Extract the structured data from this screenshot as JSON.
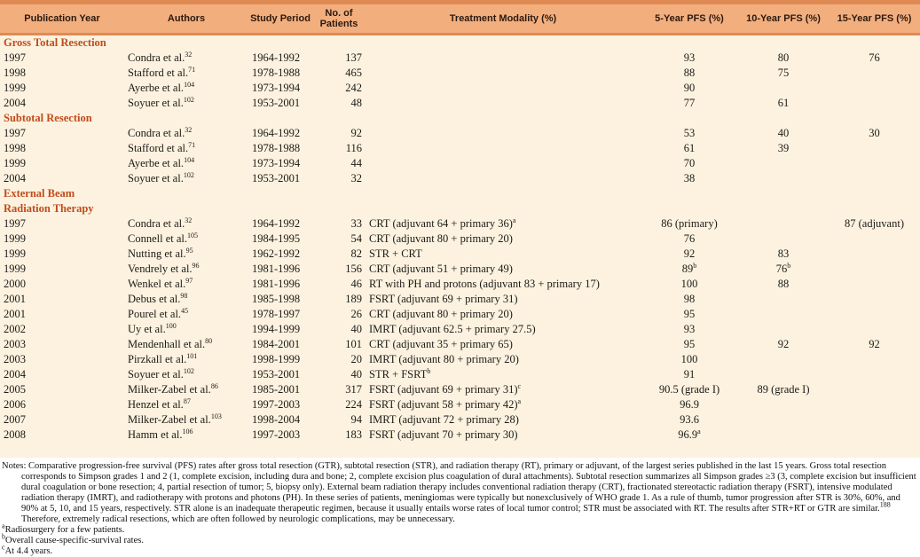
{
  "colors": {
    "header_fill": "#F3AE7E",
    "header_border": "#DF8A52",
    "body_fill": "#FCF2DF",
    "section_title_text": "#C14B1C",
    "body_text": "#1C1A18",
    "page_background": "#FFFFFF"
  },
  "table": {
    "columns": [
      {
        "id": "publication-year",
        "lines": [
          "Publication Year"
        ]
      },
      {
        "id": "authors",
        "lines": [
          "Authors"
        ]
      },
      {
        "id": "study-period",
        "lines": [
          "Study Period"
        ]
      },
      {
        "id": "no-of-patients",
        "lines": [
          "No. of",
          "Patients"
        ]
      },
      {
        "id": "treatment-modality",
        "lines": [
          "Treatment Modality (%)"
        ]
      },
      {
        "id": "pfs-5-year",
        "lines": [
          "5-Year PFS (%)"
        ]
      },
      {
        "id": "pfs-10-year",
        "lines": [
          "10-Year PFS (%)"
        ]
      },
      {
        "id": "pfs-15-year",
        "lines": [
          "15-Year PFS (%)"
        ]
      }
    ],
    "sections": [
      {
        "title_lines": [
          "Gross Total Resection"
        ],
        "rows": [
          [
            "1997",
            "Condra et al.^{32}",
            "1964-1992",
            "137",
            "",
            "93",
            "80",
            "76"
          ],
          [
            "1998",
            "Stafford et al.^{71}",
            "1978-1988",
            "465",
            "",
            "88",
            "75",
            ""
          ],
          [
            "1999",
            "Ayerbe et al.^{104}",
            "1973-1994",
            "242",
            "",
            "90",
            "",
            ""
          ],
          [
            "2004",
            "Soyuer et al.^{102}",
            "1953-2001",
            "48",
            "",
            "77",
            "61",
            ""
          ]
        ]
      },
      {
        "title_lines": [
          "Subtotal Resection"
        ],
        "rows": [
          [
            "1997",
            "Condra et al.^{32}",
            "1964-1992",
            "92",
            "",
            "53",
            "40",
            "30"
          ],
          [
            "1998",
            "Stafford et al.^{71}",
            "1978-1988",
            "116",
            "",
            "61",
            "39",
            ""
          ],
          [
            "1999",
            "Ayerbe et al.^{104}",
            "1973-1994",
            "44",
            "",
            "70",
            "",
            ""
          ],
          [
            "2004",
            "Soyuer et al.^{102}",
            "1953-2001",
            "32",
            "",
            "38",
            "",
            ""
          ]
        ]
      },
      {
        "title_lines": [
          "External Beam",
          "Radiation Therapy"
        ],
        "rows": [
          [
            "1997",
            "Condra et al.^{32}",
            "1964-1992",
            "33",
            "CRT (adjuvant 64 + primary 36)^{a}",
            "86 (primary)",
            "",
            "87 (adjuvant)"
          ],
          [
            "1999",
            "Connell et al.^{105}",
            "1984-1995",
            "54",
            "CRT (adjuvant 80 + primary 20)",
            "76",
            "",
            ""
          ],
          [
            "1999",
            "Nutting et al.^{95}",
            "1962-1992",
            "82",
            "STR + CRT",
            "92",
            "83",
            ""
          ],
          [
            "1999",
            "Vendrely et al.^{96}",
            "1981-1996",
            "156",
            "CRT (adjuvant 51 + primary 49)",
            "89^{b}",
            "76^{b}",
            ""
          ],
          [
            "2000",
            "Wenkel et al.^{97}",
            "1981-1996",
            "46",
            "RT with PH and protons (adjuvant 83 + primary 17)",
            "100",
            "88",
            ""
          ],
          [
            "2001",
            "Debus et al.^{98}",
            "1985-1998",
            "189",
            "FSRT (adjuvant 69 + primary 31)",
            "98",
            "",
            ""
          ],
          [
            "2001",
            "Pourel et al.^{45}",
            "1978-1997",
            "26",
            "CRT (adjuvant 80 + primary 20)",
            "95",
            "",
            ""
          ],
          [
            "2002",
            "Uy et al.^{100}",
            "1994-1999",
            "40",
            "IMRT (adjuvant 62.5 + primary 27.5)",
            "93",
            "",
            ""
          ],
          [
            "2003",
            "Mendenhall et al.^{80}",
            "1984-2001",
            "101",
            "CRT (adjuvant 35 + primary 65)",
            "95",
            "92",
            "92"
          ],
          [
            "2003",
            "Pirzkall et al.^{101}",
            "1998-1999",
            "20",
            "IMRT (adjuvant 80 + primary 20)",
            "100",
            "",
            ""
          ],
          [
            "2004",
            "Soyuer et al.^{102}",
            "1953-2001",
            "40",
            "STR + FSRT^{b}",
            "91",
            "",
            ""
          ],
          [
            "2005",
            "Milker-Zabel et al.^{86}",
            "1985-2001",
            "317",
            "FSRT (adjuvant 69 + primary 31)^{c}",
            "90.5 (grade I)",
            "89 (grade I)",
            ""
          ],
          [
            "2006",
            "Henzel et al.^{87}",
            "1997-2003",
            "224",
            "FSRT (adjuvant 58 + primary 42)^{a}",
            "96.9",
            "",
            ""
          ],
          [
            "2007",
            "Milker-Zabel et al.^{103}",
            "1998-2004",
            "94",
            "IMRT (adjuvant 72 + primary 28)",
            "93.6",
            "",
            ""
          ],
          [
            "2008",
            "Hamm et al.^{106}",
            "1997-2003",
            "183",
            "FSRT (adjuvant 70 + primary 30)",
            "96.9^{a}",
            "",
            ""
          ]
        ]
      }
    ]
  },
  "notes": {
    "paragraph": "Notes: Comparative progression-free survival (PFS) rates after gross total resection (GTR), subtotal resection (STR), and radiation therapy (RT), primary or adjuvant, of the largest series published in the last 15 years. Gross total resection corresponds to Simpson grades 1 and 2 (1, complete excision, including dura and bone; 2, complete excision plus coagulation of dural attachments). Subtotal resection summarizes all Simpson grades ≥3 (3, complete excision but insufficient dural coagulation or bone resection; 4, partial resection of tumor; 5, biopsy only). External beam radiation therapy includes conventional radiation therapy (CRT), fractionated stereotactic radiation therapy (FSRT), intensive modulated radiation therapy (IMRT), and radiotherapy with protons and photons (PH). In these series of patients, meningiomas were typically but nonexclusively of WHO grade 1. As a rule of thumb, tumor progression after STR is 30%, 60%, and 90% at 5, 10, and 15 years, respectively. STR alone is an inadequate therapeutic regimen, because it usually entails worse rates of local tumor control; STR must be associated with RT. The results after STR+RT or GTR are similar.^{188} Therefore, extremely radical resections, which are often followed by neurologic complications, may be unnecessary.",
    "footnotes": [
      "^{a}Radiosurgery for a few patients.",
      "^{b}Overall cause-specific-survival rates.",
      "^{c}At 4.4 years."
    ]
  }
}
